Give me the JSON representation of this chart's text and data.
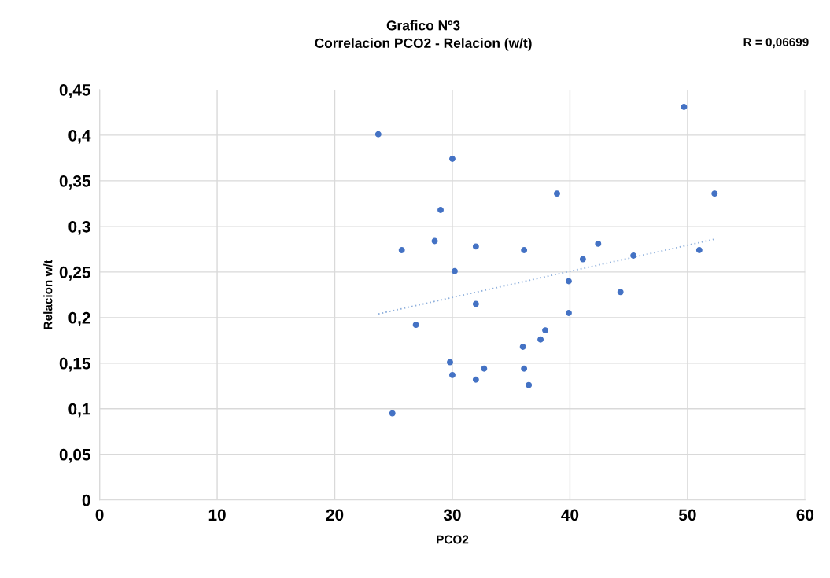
{
  "chart_data": {
    "type": "scatter",
    "title": "Grafico Nº3\nCorrelacion PCO2 - Relacion (w/t)",
    "xlabel": "PCO2",
    "ylabel": "Relacion w/t",
    "annotations": [
      "R = 0,06699"
    ],
    "series": [
      {
        "color": "#4472c4",
        "marker": "circle",
        "x": [
          23.7,
          24.9,
          25.7,
          26.9,
          28.5,
          29.0,
          30.0,
          29.8,
          30.0,
          30.2,
          32.0,
          32.0,
          32.0,
          32.7,
          36.0,
          36.1,
          36.1,
          36.5,
          37.5,
          37.9,
          38.9,
          39.9,
          39.9,
          41.1,
          42.4,
          44.3,
          45.4,
          49.7,
          51.0,
          52.3
        ],
        "values": [
          0.401,
          0.095,
          0.274,
          0.192,
          0.284,
          0.318,
          0.374,
          0.151,
          0.137,
          0.251,
          0.278,
          0.215,
          0.132,
          0.144,
          0.168,
          0.274,
          0.144,
          0.126,
          0.176,
          0.186,
          0.336,
          0.24,
          0.205,
          0.264,
          0.281,
          0.228,
          0.268,
          0.431,
          0.274,
          0.336
        ]
      },
      {
        "type": "line",
        "color": "#8fb0dc",
        "line_style": "dotted",
        "marker": "none",
        "x": [
          23.7,
          52.3
        ],
        "values": [
          0.204,
          0.286
        ]
      }
    ],
    "xlim": [
      0,
      60
    ],
    "xticks": [
      0,
      10,
      20,
      30,
      40,
      50,
      60
    ],
    "ylim": [
      0,
      0.45
    ],
    "yticks": [
      {
        "value": 0,
        "label": "0"
      },
      {
        "value": 0.05,
        "label": "0,05"
      },
      {
        "value": 0.1,
        "label": "0,1"
      },
      {
        "value": 0.15,
        "label": "0,15"
      },
      {
        "value": 0.2,
        "label": "0,2"
      },
      {
        "value": 0.25,
        "label": "0,25"
      },
      {
        "value": 0.3,
        "label": "0,3"
      },
      {
        "value": 0.35,
        "label": "0,35"
      },
      {
        "value": 0.4,
        "label": "0,4"
      },
      {
        "value": 0.45,
        "label": "0,45"
      }
    ],
    "grid": true,
    "legend": false
  }
}
